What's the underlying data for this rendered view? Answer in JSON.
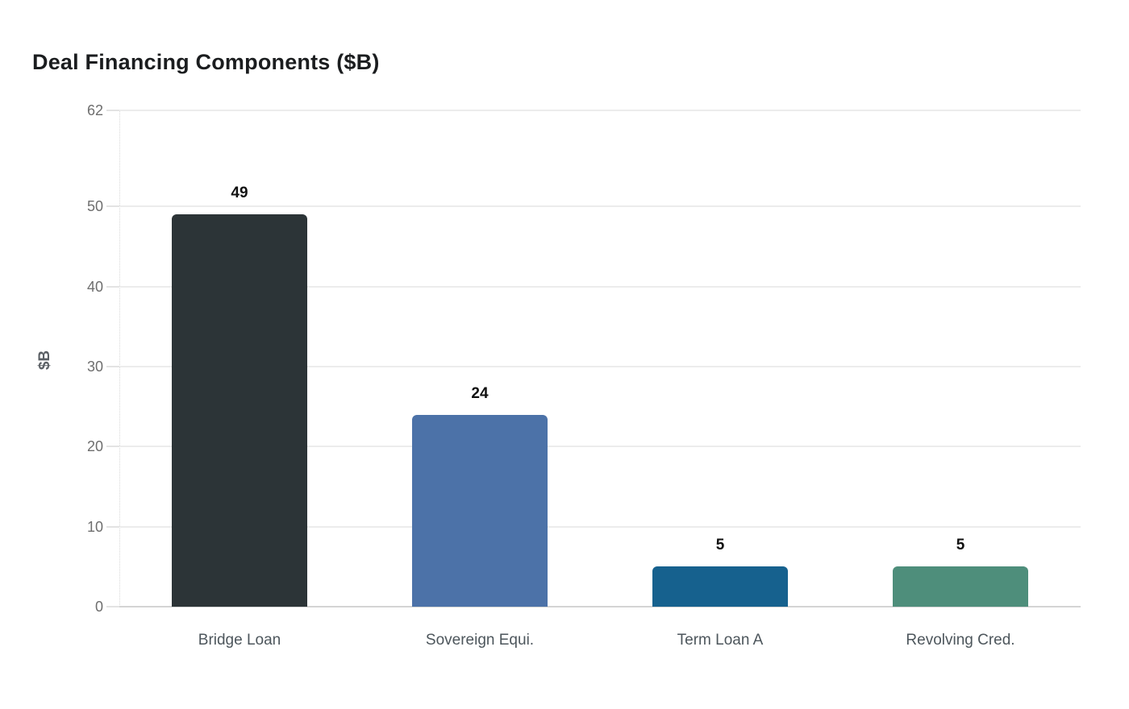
{
  "page": {
    "background": "#ffffff"
  },
  "chart_data": {
    "type": "bar",
    "title": "Deal Financing Components ($B)",
    "ylabel": "$B",
    "xlabel": "",
    "categories": [
      "Bridge Loan",
      "Sovereign Equi.",
      "Term Loan A",
      "Revolving Cred."
    ],
    "values": [
      49,
      24,
      5,
      5
    ],
    "value_labels": [
      "49",
      "24",
      "5",
      "5"
    ],
    "ylim": [
      0,
      62
    ],
    "yticks": [
      0,
      10,
      20,
      30,
      40,
      50,
      62
    ],
    "grid": "horizontal",
    "legend_position": "none",
    "bar_colors": [
      "#2c3437",
      "#4c72a8",
      "#16618e",
      "#4e8e7b"
    ]
  },
  "style": {
    "title_color": "#1b1d1f",
    "tick_label_color": "#6e6e6e",
    "x_label_color": "#4d565c",
    "value_label_color": "#111111",
    "ylabel_color": "#5b6065",
    "grid_color": "#ececec",
    "zero_line_color": "#d4d4d4",
    "axis_line_color": "#d8d8d8"
  }
}
